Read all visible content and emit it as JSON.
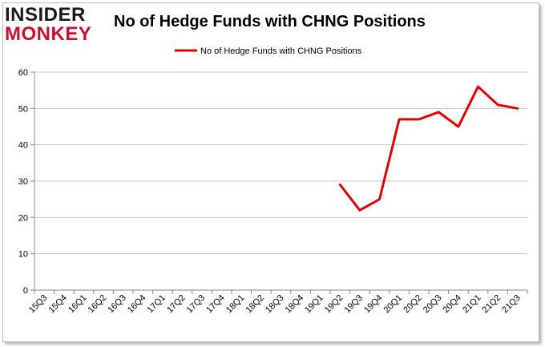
{
  "logo": {
    "line1": "INSIDER",
    "line2": "MONKEY"
  },
  "colors": {
    "line": "#e00000",
    "grid": "#c8c8c8",
    "axis": "#888888"
  },
  "chart_data": {
    "type": "line",
    "title": "No of Hedge Funds with CHNG Positions",
    "xlabel": "",
    "ylabel": "",
    "ylim": [
      0,
      60
    ],
    "yticks": [
      0,
      10,
      20,
      30,
      40,
      50,
      60
    ],
    "grid": true,
    "legend_position": "top-center",
    "categories": [
      "15Q3",
      "15Q4",
      "16Q1",
      "16Q2",
      "16Q3",
      "16Q4",
      "17Q1",
      "17Q2",
      "17Q3",
      "17Q4",
      "18Q1",
      "18Q2",
      "18Q3",
      "18Q4",
      "19Q1",
      "19Q2",
      "19Q3",
      "19Q4",
      "20Q1",
      "20Q2",
      "20Q3",
      "20Q4",
      "21Q1",
      "21Q2",
      "21Q3"
    ],
    "series": [
      {
        "name": "No of Hedge Funds with CHNG  Positions",
        "color": "#e00000",
        "values": [
          null,
          null,
          null,
          null,
          null,
          null,
          null,
          null,
          null,
          null,
          null,
          null,
          null,
          null,
          null,
          29,
          22,
          25,
          47,
          47,
          49,
          45,
          56,
          51,
          50
        ]
      }
    ]
  }
}
